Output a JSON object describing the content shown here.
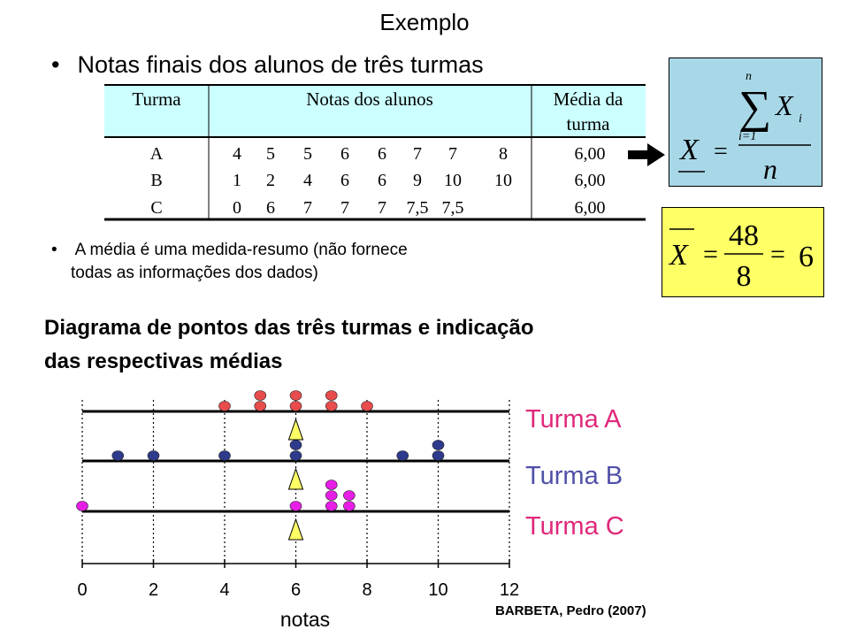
{
  "title": "Exemplo",
  "bullet_main": "Notas finais dos alunos de três turmas",
  "table": {
    "headers": {
      "turma": "Turma",
      "notas": "Notas dos alunos",
      "media_line1": "Média da",
      "media_line2": "turma"
    },
    "rows": [
      {
        "turma": "A",
        "notas": [
          "4",
          "5",
          "5",
          "6",
          "6",
          "7",
          "7",
          "8"
        ],
        "media": "6,00"
      },
      {
        "turma": "B",
        "notas": [
          "1",
          "2",
          "4",
          "6",
          "6",
          "9",
          "10",
          "10"
        ],
        "media": "6,00"
      },
      {
        "turma": "C",
        "notas": [
          "0",
          "6",
          "7",
          "7",
          "7",
          "7,5",
          "7,5"
        ],
        "media": "6,00"
      }
    ]
  },
  "formula_box": {
    "color": "#a8d8e8",
    "upper_limit": "n",
    "lower_limit": "i=1",
    "variable": "X",
    "subscript": "i",
    "denominator": "n"
  },
  "mean_box": {
    "color": "#ffff66",
    "numerator": "48",
    "denominator": "8",
    "result": "6"
  },
  "bullet_sub": {
    "line1": "A média é uma medida-resumo (não fornece",
    "line2": "todas as informações dos dados)"
  },
  "diagram_title": {
    "line1": "Diagrama de pontos das três turmas e indicação",
    "line2": "das respectivas médias"
  },
  "chart_data": {
    "type": "scatter",
    "xlabel": "notas",
    "x_ticks": [
      0,
      2,
      4,
      6,
      8,
      10,
      12
    ],
    "xlim": [
      0,
      12
    ],
    "series": [
      {
        "name": "Turma A",
        "color": "#e84c4c",
        "label_color": "#e0287a",
        "values": [
          4,
          5,
          5,
          6,
          6,
          7,
          7,
          8
        ],
        "mean": 6
      },
      {
        "name": "Turma B",
        "color": "#2e3a8c",
        "label_color": "#5050a8",
        "values": [
          1,
          2,
          4,
          6,
          6,
          9,
          10,
          10
        ],
        "mean": 6
      },
      {
        "name": "Turma C",
        "color": "#e61ee6",
        "label_color": "#e0287a",
        "values": [
          0,
          6,
          7,
          7,
          7,
          7.5,
          7.5
        ],
        "mean": 6
      }
    ],
    "mean_marker_color": "#ffff66"
  },
  "credit": "BARBETA, Pedro (2007)"
}
